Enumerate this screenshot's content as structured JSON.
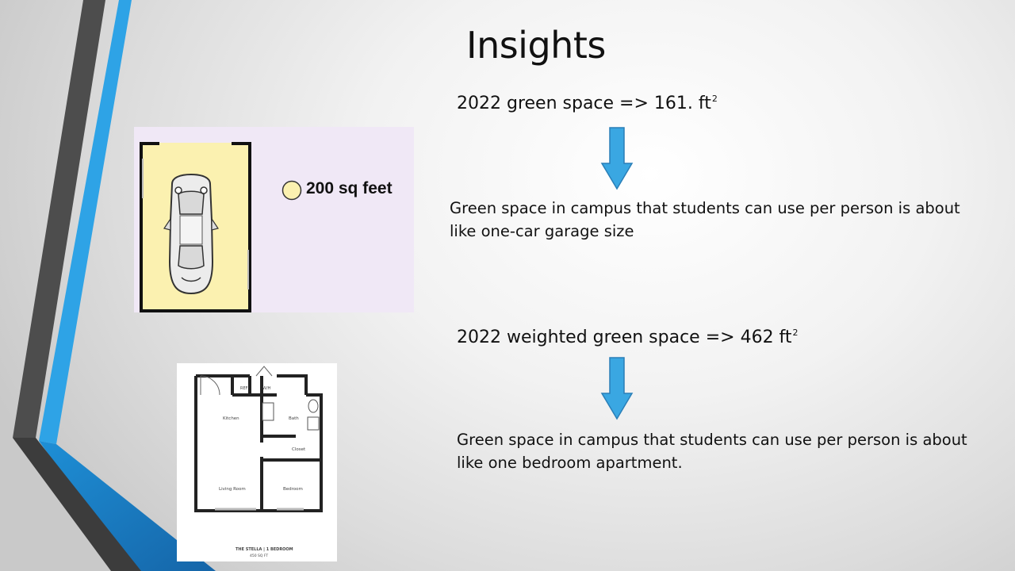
{
  "slide": {
    "title": "Insights",
    "stat1": {
      "text": "2022 green space => 161. ft",
      "superscript": "2",
      "description": "Green space in campus that students can use  per person is about like one-car garage size"
    },
    "stat2": {
      "text": "2022 weighted green space => 462 ft",
      "superscript": "2",
      "description": "Green space in campus that students can use  per person is about like one bedroom apartment."
    },
    "garage_image": {
      "label": "200 sq feet"
    },
    "floorplan_image": {
      "rooms": {
        "ref": "REF",
        "wh": "W/H",
        "kitchen": "Kitchen",
        "bath": "Bath",
        "closet": "Closet",
        "living": "Living Room",
        "bedroom": "Bedroom"
      },
      "caption": "THE STELLA  |  1 BEDROOM",
      "area": "450 SQ FT"
    },
    "colors": {
      "arrow_fill": "#3aa7e2",
      "arrow_stroke": "#2a7fb8",
      "accent_blue": "#2ea3e6",
      "accent_dark": "#4a4a4a"
    }
  }
}
